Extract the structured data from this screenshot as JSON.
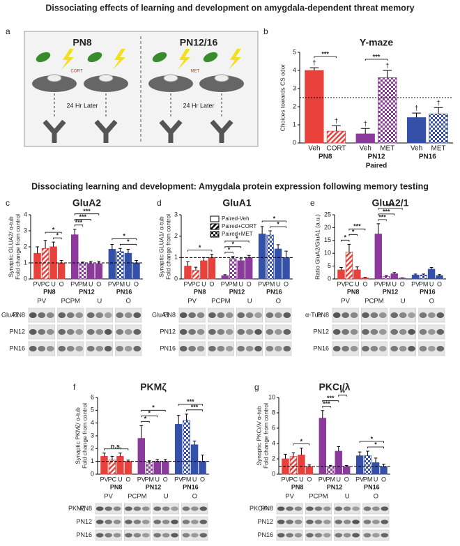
{
  "figure_title": "Dissociating effects of learning and development on amygdala-dependent threat memory",
  "section_title": "Dissociating learning and development: Amygdala protein expression following memory testing",
  "panel_a": {
    "letter": "a",
    "left_label": "PN8",
    "right_label": "PN12/16",
    "drugs": [
      "CORT",
      "MET"
    ],
    "delay": [
      "24 Hr Later",
      "24 Hr Later"
    ]
  },
  "chart_data": [
    {
      "type": "bar",
      "letter": "b",
      "title": "Y-maze",
      "ylabel": [
        "Choices towards CS odor"
      ],
      "xlabel": "Paired",
      "categories": [
        "Veh",
        "CORT",
        "Veh",
        "MET",
        "Veh",
        "MET"
      ],
      "groups": [
        "PN8",
        "PN12",
        "PN16"
      ],
      "values": [
        4.0,
        0.65,
        0.5,
        3.6,
        1.4,
        1.6
      ],
      "errors": [
        0.15,
        0.3,
        0.3,
        0.4,
        0.25,
        0.35
      ],
      "colors": [
        "#e8413c",
        "#e8413c",
        "#8b3a9c",
        "#8b3a9c",
        "#3550a8",
        "#3550a8"
      ],
      "patterns": [
        "solid",
        "hatch",
        "solid",
        "check",
        "solid",
        "check"
      ],
      "markers": [
        "†",
        "†",
        "†",
        "†",
        "†",
        "†"
      ],
      "hline": 2.5,
      "ylim": [
        0,
        5
      ],
      "yticks": [
        0,
        1,
        2,
        3,
        4,
        5
      ],
      "annotations": [
        {
          "label": "***",
          "from": 0,
          "to": 1
        },
        {
          "label": "***",
          "from": 2,
          "to": 3
        }
      ]
    },
    {
      "type": "bar",
      "letter": "c",
      "title": "GluA2",
      "ylabel": [
        "Synaptic GLUA2/ α-tub",
        "Fold change from control"
      ],
      "categories": [
        "PV",
        "PC",
        "U",
        "O",
        "PV",
        "PM",
        "U",
        "O",
        "PV",
        "PM",
        "U",
        "O"
      ],
      "groups": [
        "PN8",
        "PN12",
        "PN16"
      ],
      "values": [
        1.6,
        1.9,
        2.0,
        1.0,
        2.75,
        0.95,
        0.95,
        0.95,
        1.85,
        1.7,
        1.6,
        1.0
      ],
      "errors": [
        0.4,
        0.5,
        0.3,
        0.15,
        0.35,
        0.1,
        0.15,
        0.15,
        0.3,
        0.2,
        0.25,
        0.15
      ],
      "colors": [
        "#e8413c",
        "#e8413c",
        "#e8413c",
        "#e8413c",
        "#8b3a9c",
        "#8b3a9c",
        "#8b3a9c",
        "#8b3a9c",
        "#3550a8",
        "#3550a8",
        "#3550a8",
        "#3550a8"
      ],
      "patterns": [
        "solid",
        "hatch",
        "solid",
        "solid",
        "solid",
        "check",
        "solid",
        "solid",
        "solid",
        "check",
        "solid",
        "solid"
      ],
      "hline": 1,
      "ylim": [
        0,
        4
      ],
      "yticks": [
        0,
        1,
        2,
        3,
        4
      ],
      "annotations": [
        {
          "label": "*",
          "from": 2,
          "to": 3
        },
        {
          "label": "*",
          "from": 1,
          "to": 3
        },
        {
          "label": "***",
          "from": 4,
          "to": 5
        },
        {
          "label": "***",
          "from": 4,
          "to": 6
        },
        {
          "label": "***",
          "from": 4,
          "to": 7
        },
        {
          "label": "*",
          "from": 9,
          "to": 11
        },
        {
          "label": "*",
          "from": 8,
          "to": 11
        }
      ],
      "blot": {
        "protein": "GluA2",
        "columns": [
          "PV",
          "PCPM",
          "U",
          "O"
        ],
        "rows": [
          "PN8",
          "PN12",
          "PN16"
        ]
      }
    },
    {
      "type": "bar",
      "letter": "d",
      "title": "GluA1",
      "ylabel": [
        "Synaptic GLUA1/ α-tub",
        "Fold change from control"
      ],
      "categories": [
        "PV",
        "PC",
        "U",
        "O",
        "PV",
        "PM",
        "U",
        "O",
        "PV",
        "PM",
        "U",
        "O"
      ],
      "groups": [
        "PN8",
        "PN12",
        "PN16"
      ],
      "values": [
        0.6,
        0.4,
        0.85,
        1.0,
        0.15,
        0.95,
        0.85,
        1.0,
        2.1,
        2.05,
        1.4,
        1.0
      ],
      "errors": [
        0.2,
        0.15,
        0.15,
        0.15,
        0.05,
        0.1,
        0.1,
        0.1,
        0.35,
        0.2,
        0.2,
        0.3
      ],
      "colors": [
        "#e8413c",
        "#e8413c",
        "#e8413c",
        "#e8413c",
        "#8b3a9c",
        "#8b3a9c",
        "#8b3a9c",
        "#8b3a9c",
        "#3550a8",
        "#3550a8",
        "#3550a8",
        "#3550a8"
      ],
      "patterns": [
        "solid",
        "hatch",
        "solid",
        "solid",
        "solid",
        "check",
        "solid",
        "solid",
        "solid",
        "check",
        "solid",
        "solid"
      ],
      "hline": 1,
      "ylim": [
        0,
        3
      ],
      "yticks": [
        0,
        1,
        2,
        3
      ],
      "legend": [
        {
          "label": "Paired-Veh",
          "pattern": "solid"
        },
        {
          "label": "Paired+CORT",
          "pattern": "hatch"
        },
        {
          "label": "Paired+MET",
          "pattern": "check"
        }
      ],
      "annotations": [
        {
          "label": "*",
          "from": 0,
          "to": 3
        },
        {
          "label": "*",
          "from": 4,
          "to": 5
        },
        {
          "label": "*",
          "from": 4,
          "to": 6
        },
        {
          "label": "*",
          "from": 4,
          "to": 7
        },
        {
          "label": "*",
          "from": 9,
          "to": 11
        },
        {
          "label": "*",
          "from": 8,
          "to": 11
        }
      ],
      "blot": {
        "protein": "GluA1",
        "columns": [
          "PV",
          "PCPM",
          "U",
          "O"
        ],
        "rows": [
          "PN8",
          "PN12",
          "PN16"
        ]
      }
    },
    {
      "type": "bar",
      "letter": "e",
      "title": "GluA2/1",
      "ylabel": [
        "Ratio GluA2/GluA1 (a.u.)"
      ],
      "categories": [
        "PV",
        "PC",
        "U",
        "O",
        "PV",
        "PM",
        "U",
        "O",
        "PV",
        "PM",
        "U",
        "O"
      ],
      "groups": [
        "PN8",
        "PN12",
        "PN16"
      ],
      "values": [
        3.5,
        10.5,
        3.5,
        0.4,
        17.5,
        1.0,
        2.0,
        0.3,
        1.5,
        1.5,
        3.8,
        1.3
      ],
      "errors": [
        1.0,
        3.0,
        1.2,
        0.2,
        4.0,
        0.3,
        0.5,
        0.1,
        0.4,
        0.4,
        0.7,
        0.4
      ],
      "colors": [
        "#e8413c",
        "#e8413c",
        "#e8413c",
        "#e8413c",
        "#8b3a9c",
        "#8b3a9c",
        "#8b3a9c",
        "#8b3a9c",
        "#3550a8",
        "#3550a8",
        "#3550a8",
        "#3550a8"
      ],
      "patterns": [
        "solid",
        "hatch",
        "solid",
        "solid",
        "solid",
        "check",
        "solid",
        "solid",
        "solid",
        "check",
        "solid",
        "solid"
      ],
      "ylim": [
        0,
        25
      ],
      "yticks": [
        0,
        5,
        10,
        15,
        20,
        25
      ],
      "annotations": [
        {
          "label": "*",
          "from": 0,
          "to": 1
        },
        {
          "label": "*",
          "from": 1,
          "to": 2
        },
        {
          "label": "***",
          "from": 1,
          "to": 3
        },
        {
          "label": "***",
          "from": 4,
          "to": 5
        },
        {
          "label": "***",
          "from": 4,
          "to": 6
        },
        {
          "label": "***",
          "from": 4,
          "to": 7
        }
      ],
      "blot": {
        "protein": "α-Tub",
        "columns": [
          "PV",
          "PCPM",
          "U",
          "O"
        ],
        "rows": [
          "PN8",
          "PN12",
          "PN16"
        ]
      }
    },
    {
      "type": "bar",
      "letter": "f",
      "title": "PKMζ",
      "ylabel": [
        "Synaptic PKMζ/ α-tub",
        "Fold change from control"
      ],
      "categories": [
        "PV",
        "PC",
        "U",
        "O",
        "PV",
        "PM",
        "U",
        "O",
        "PV",
        "PM",
        "U",
        "O"
      ],
      "groups": [
        "PN8",
        "PN12",
        "PN16"
      ],
      "values": [
        1.4,
        1.1,
        1.4,
        1.0,
        2.8,
        0.9,
        1.0,
        1.0,
        3.9,
        4.2,
        2.3,
        1.0
      ],
      "errors": [
        0.25,
        0.3,
        0.25,
        0.1,
        1.0,
        0.15,
        0.15,
        0.15,
        0.7,
        0.5,
        0.3,
        0.5
      ],
      "colors": [
        "#e8413c",
        "#e8413c",
        "#e8413c",
        "#e8413c",
        "#8b3a9c",
        "#8b3a9c",
        "#8b3a9c",
        "#8b3a9c",
        "#3550a8",
        "#3550a8",
        "#3550a8",
        "#3550a8"
      ],
      "patterns": [
        "solid",
        "hatch",
        "solid",
        "solid",
        "solid",
        "check",
        "solid",
        "solid",
        "solid",
        "check",
        "solid",
        "solid"
      ],
      "hline": 1,
      "ylim": [
        0,
        6
      ],
      "yticks": [
        0,
        1,
        2,
        3,
        4,
        5,
        6
      ],
      "annotations": [
        {
          "label": "n.s.",
          "from": 0,
          "to": 3
        },
        {
          "label": "*",
          "from": 4,
          "to": 5
        },
        {
          "label": "*",
          "from": 4,
          "to": 6
        },
        {
          "label": "*",
          "from": 4,
          "to": 7
        },
        {
          "label": "***",
          "from": 9,
          "to": 11
        },
        {
          "label": "***",
          "from": 8,
          "to": 11
        }
      ],
      "blot": {
        "protein": "PKMζ",
        "columns": [
          "PV",
          "PCPM",
          "U",
          "O"
        ],
        "rows": [
          "PN8",
          "PN12",
          "PN16"
        ]
      }
    },
    {
      "type": "bar",
      "letter": "g",
      "title": "PKCι/λ",
      "ylabel": [
        "Synaptic PKCι/λ/ α-tub",
        "Fold change from control"
      ],
      "categories": [
        "PV",
        "PC",
        "U",
        "O",
        "PV",
        "PM",
        "U",
        "O",
        "PV",
        "PM",
        "U",
        "O"
      ],
      "groups": [
        "PN8",
        "PN12",
        "PN16"
      ],
      "values": [
        2.0,
        2.3,
        2.5,
        1.0,
        7.3,
        1.0,
        3.0,
        1.0,
        2.4,
        2.4,
        1.5,
        1.0
      ],
      "errors": [
        0.6,
        0.5,
        0.9,
        0.2,
        1.0,
        0.15,
        0.6,
        0.15,
        0.5,
        0.6,
        0.6,
        0.3
      ],
      "colors": [
        "#e8413c",
        "#e8413c",
        "#e8413c",
        "#e8413c",
        "#8b3a9c",
        "#8b3a9c",
        "#8b3a9c",
        "#8b3a9c",
        "#3550a8",
        "#3550a8",
        "#3550a8",
        "#3550a8"
      ],
      "patterns": [
        "solid",
        "hatch",
        "solid",
        "solid",
        "solid",
        "check",
        "solid",
        "solid",
        "solid",
        "check",
        "solid",
        "solid"
      ],
      "hline": 1,
      "ylim": [
        0,
        10
      ],
      "yticks": [
        0,
        2,
        4,
        6,
        8,
        10
      ],
      "annotations": [
        {
          "label": "*",
          "from": 1,
          "to": 3
        },
        {
          "label": "***",
          "from": 4,
          "to": 5
        },
        {
          "label": "***",
          "from": 4,
          "to": 6
        },
        {
          "label": "**",
          "from": 6,
          "to": 7
        },
        {
          "label": "*",
          "from": 9,
          "to": 11
        },
        {
          "label": "*",
          "from": 8,
          "to": 11
        }
      ],
      "blot": {
        "protein": "PKCι/λ",
        "columns": [
          "PV",
          "PCPM",
          "U",
          "O"
        ],
        "rows": [
          "PN8",
          "PN12",
          "PN16"
        ]
      }
    }
  ]
}
